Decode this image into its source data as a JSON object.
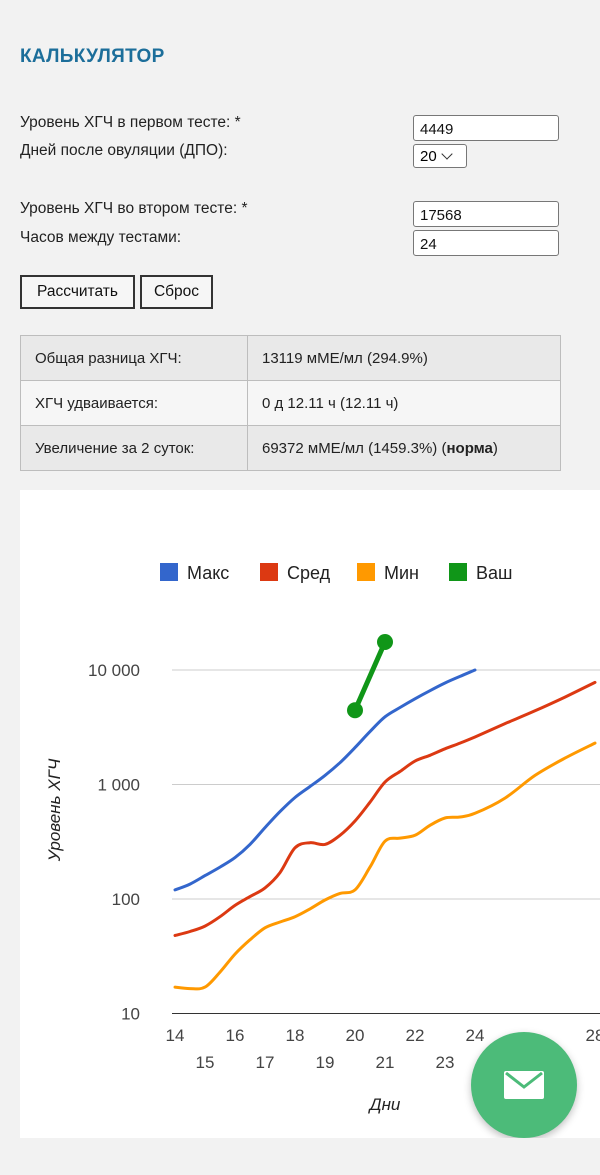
{
  "calculator": {
    "title": "КАЛЬКУЛЯТОР",
    "first_test_label": "Уровень ХГЧ в первом тесте: *",
    "first_test_value": "4449",
    "dpo_label": "Дней после овуляции (ДПО):",
    "dpo_value": "20",
    "second_test_label": "Уровень ХГЧ во втором тесте: *",
    "second_test_value": "17568",
    "hours_label": "Часов между тестами:",
    "hours_value": "24",
    "calc_button": "Рассчитать",
    "reset_button": "Сброс"
  },
  "results": [
    {
      "label": "Общая разница ХГЧ:",
      "value": "13119 мМЕ/мл (294.9%)"
    },
    {
      "label": "ХГЧ удваивается:",
      "value": "0 д 12.11 ч (12.11 ч)"
    },
    {
      "label": "Увеличение за 2 суток:",
      "value": "69372 мМЕ/мл (1459.3%) (",
      "bold": "норма",
      "tail": ")"
    }
  ],
  "chart_data": {
    "type": "line",
    "xlabel": "Дни",
    "ylabel": "Уровень ХГЧ",
    "y_scale": "log",
    "ylim": [
      10,
      20000
    ],
    "yticks": [
      10,
      100,
      1000,
      10000
    ],
    "ytick_labels": [
      "10",
      "100",
      "1 000",
      "10 000"
    ],
    "xticks": [
      14,
      15,
      16,
      17,
      18,
      19,
      20,
      21,
      22,
      23,
      24,
      26,
      28
    ],
    "xtick_labels": [
      "14",
      "15",
      "16",
      "17",
      "18",
      "19",
      "20",
      "21",
      "22",
      "23",
      "24",
      "26",
      "28"
    ],
    "legend_position": "top",
    "series": [
      {
        "name": "Макс",
        "color": "#3366cc",
        "x": [
          14,
          14.5,
          15,
          15.5,
          16,
          16.5,
          17,
          17.5,
          18,
          18.5,
          19,
          19.5,
          20,
          20.5,
          21,
          21.5,
          22,
          22.5,
          23,
          23.5,
          24
        ],
        "y": [
          120,
          135,
          160,
          190,
          230,
          300,
          420,
          580,
          770,
          960,
          1200,
          1550,
          2100,
          2900,
          3900,
          4700,
          5600,
          6600,
          7700,
          8800,
          10000
        ]
      },
      {
        "name": "Сред",
        "color": "#dc3912",
        "x": [
          14,
          14.5,
          15,
          15.5,
          16,
          16.5,
          17,
          17.5,
          18,
          18.5,
          19,
          19.5,
          20,
          20.5,
          21,
          21.5,
          22,
          22.5,
          23,
          23.5,
          24,
          25,
          26,
          27,
          28
        ],
        "y": [
          48,
          52,
          58,
          70,
          88,
          105,
          125,
          170,
          280,
          310,
          300,
          360,
          480,
          700,
          1050,
          1300,
          1600,
          1800,
          2050,
          2300,
          2600,
          3400,
          4400,
          5800,
          7800
        ]
      },
      {
        "name": "Мин",
        "color": "#ff9900",
        "x": [
          14,
          14.5,
          15,
          15.5,
          16,
          16.5,
          17,
          17.5,
          18,
          18.5,
          19,
          19.5,
          20,
          20.5,
          21,
          21.5,
          22,
          22.5,
          23,
          23.5,
          24,
          25,
          26,
          27,
          28
        ],
        "y": [
          17,
          16.5,
          17,
          23,
          33,
          44,
          56,
          63,
          70,
          82,
          98,
          112,
          120,
          190,
          320,
          340,
          360,
          440,
          510,
          520,
          560,
          760,
          1200,
          1700,
          2300
        ]
      },
      {
        "name": "Ваш",
        "color": "#109618",
        "x": [
          20,
          21
        ],
        "y": [
          4449,
          17568
        ]
      }
    ]
  },
  "fab": {
    "icon": "mail-icon"
  }
}
